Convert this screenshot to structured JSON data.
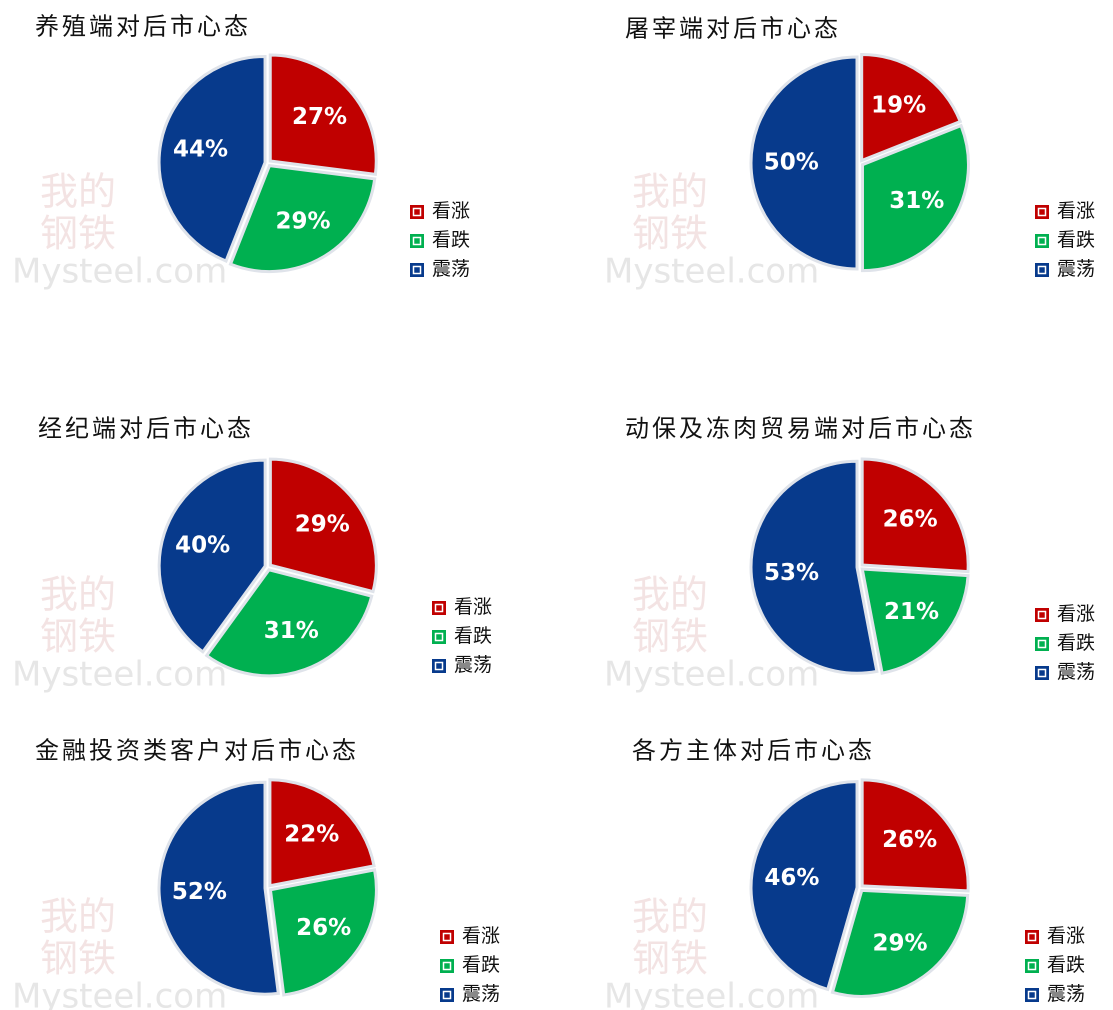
{
  "watermark": [
    "我的",
    "钢铁",
    "Mysteel.com"
  ],
  "chart_data": [
    {
      "type": "pie",
      "title": "养殖端对后市心态",
      "categories": [
        "看涨",
        "看跌",
        "震荡"
      ],
      "values": [
        27,
        29,
        44
      ],
      "value_labels": [
        "27%",
        "29%",
        "44%"
      ],
      "colors": [
        "#c00000",
        "#00b050",
        "#073a8c"
      ]
    },
    {
      "type": "pie",
      "title": "屠宰端对后市心态",
      "categories": [
        "看涨",
        "看跌",
        "震荡"
      ],
      "values": [
        19,
        31,
        50
      ],
      "value_labels": [
        "19%",
        "31%",
        "50%"
      ],
      "colors": [
        "#c00000",
        "#00b050",
        "#073a8c"
      ]
    },
    {
      "type": "pie",
      "title": "经纪端对后市心态",
      "categories": [
        "看涨",
        "看跌",
        "震荡"
      ],
      "values": [
        29,
        31,
        40
      ],
      "value_labels": [
        "29%",
        "31%",
        "40%"
      ],
      "colors": [
        "#c00000",
        "#00b050",
        "#073a8c"
      ]
    },
    {
      "type": "pie",
      "title": "动保及冻肉贸易端对后市心态",
      "categories": [
        "看涨",
        "看跌",
        "震荡"
      ],
      "values": [
        26,
        21,
        53
      ],
      "value_labels": [
        "26%",
        "21%",
        "53%"
      ],
      "colors": [
        "#c00000",
        "#00b050",
        "#073a8c"
      ]
    },
    {
      "type": "pie",
      "title": "金融投资类客户对后市心态",
      "categories": [
        "看涨",
        "看跌",
        "震荡"
      ],
      "values": [
        22,
        26,
        52
      ],
      "value_labels": [
        "22%",
        "26%",
        "52%"
      ],
      "colors": [
        "#c00000",
        "#00b050",
        "#073a8c"
      ]
    },
    {
      "type": "pie",
      "title": "各方主体对后市心态",
      "categories": [
        "看涨",
        "看跌",
        "震荡"
      ],
      "values": [
        26,
        29,
        46
      ],
      "value_labels": [
        "26%",
        "29%",
        "46%"
      ],
      "colors": [
        "#c00000",
        "#00b050",
        "#073a8c"
      ]
    }
  ]
}
